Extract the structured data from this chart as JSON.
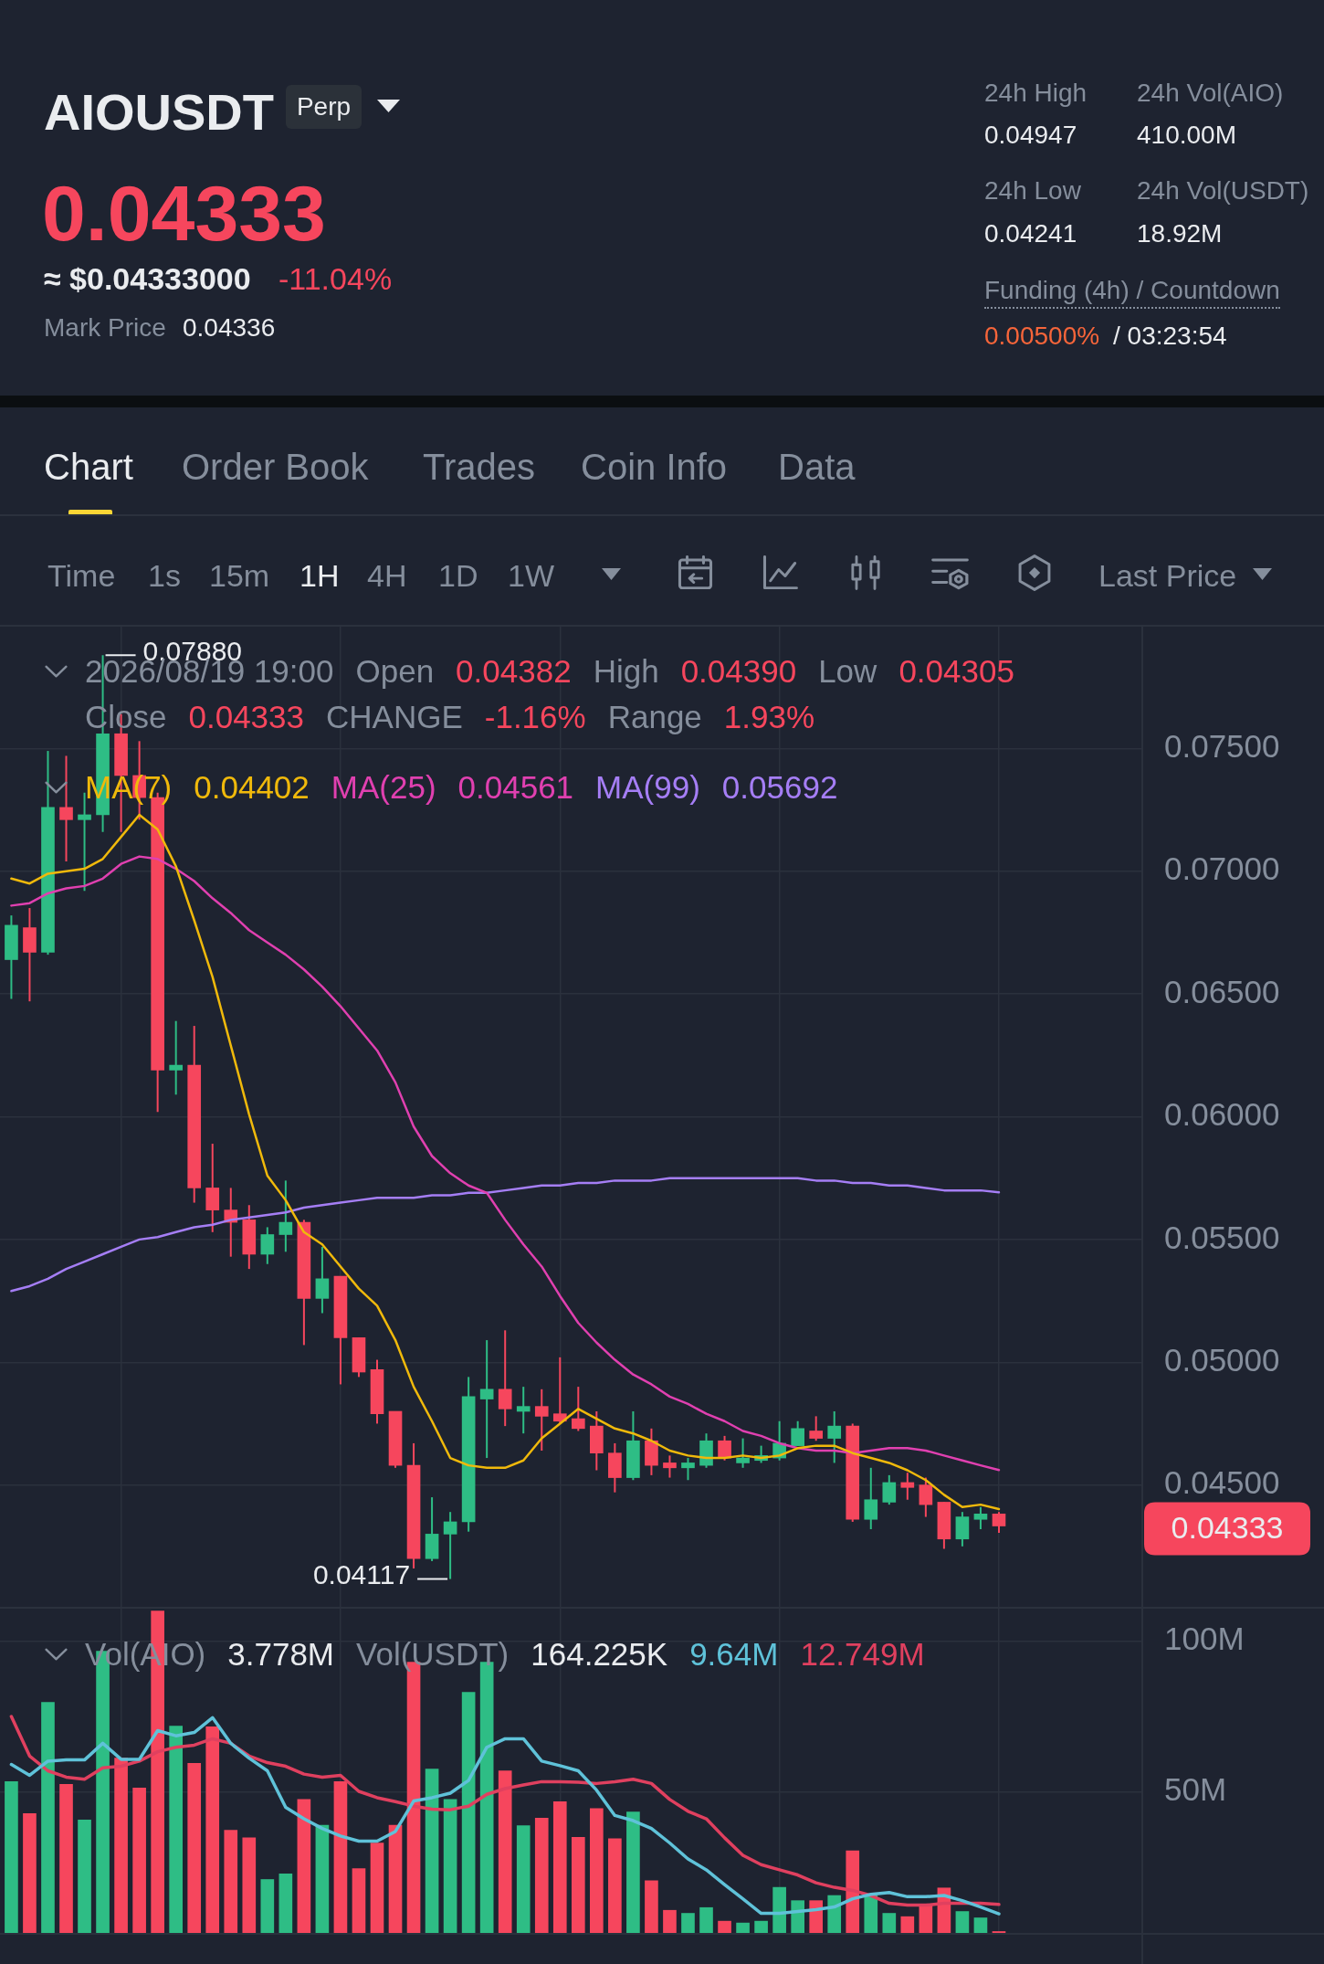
{
  "chart_data": [
    {
      "type": "other",
      "title": "AIOUSDT",
      "annotations": [
        "Perp",
        "0.04333",
        "≈ $0.04333000",
        "-11.04%",
        "Mark Price",
        "0.04336",
        "24h High",
        "0.04947",
        "24h Vol(AIO)",
        "410.00M",
        "24h Low",
        "0.04241",
        "24h Vol(USDT)",
        "18.92M",
        "Funding (4h) / Countdown",
        "0.00500%",
        "/ 03:23:54",
        "Chart",
        "Order Book",
        "Trades",
        "Coin Info",
        "Data",
        "Time",
        "1s",
        "15m",
        "1H",
        "4H",
        "1D",
        "1W",
        "Last Price"
      ]
    },
    {
      "type": "candlestick",
      "categories": [
        null,
        null,
        null,
        null,
        null,
        null,
        null,
        null,
        null,
        null,
        null,
        null,
        null,
        null,
        null,
        null,
        null,
        null,
        null,
        null,
        null,
        null,
        null,
        null,
        null,
        null,
        null,
        null,
        null,
        null,
        null,
        null,
        null,
        null,
        null,
        null,
        null,
        null,
        null,
        null,
        null,
        null,
        null,
        null,
        null,
        null,
        null,
        null,
        null,
        null,
        null,
        null,
        null,
        null,
        null
      ],
      "ohlc": [
        [
          0.0664,
          0.0682,
          0.0648,
          0.0678
        ],
        [
          0.0677,
          0.0685,
          0.0647,
          0.0667
        ],
        [
          0.0667,
          0.0749,
          0.0666,
          0.0726
        ],
        [
          0.0726,
          0.0747,
          0.0704,
          0.0721
        ],
        [
          0.0721,
          0.0732,
          0.0692,
          0.0723
        ],
        [
          0.0723,
          0.0788,
          0.0716,
          0.0756
        ],
        [
          0.0756,
          0.0764,
          0.0716,
          0.0739
        ],
        [
          0.0739,
          0.0753,
          0.0721,
          0.073
        ],
        [
          0.073,
          0.0732,
          0.0602,
          0.0619
        ],
        [
          0.0619,
          0.0639,
          0.0609,
          0.0621
        ],
        [
          0.0621,
          0.0637,
          0.0565,
          0.0571
        ],
        [
          0.0571,
          0.0589,
          0.0553,
          0.0562
        ],
        [
          0.0562,
          0.0571,
          0.0543,
          0.0557
        ],
        [
          0.0558,
          0.0564,
          0.0538,
          0.0544
        ],
        [
          0.0544,
          0.0555,
          0.054,
          0.0552
        ],
        [
          0.0552,
          0.0574,
          0.0545,
          0.0557
        ],
        [
          0.0557,
          0.0558,
          0.0507,
          0.0526
        ],
        [
          0.0526,
          0.0547,
          0.052,
          0.0534
        ],
        [
          0.0535,
          0.0535,
          0.0491,
          0.051
        ],
        [
          0.051,
          0.051,
          0.0494,
          0.0496
        ],
        [
          0.0497,
          0.0501,
          0.0475,
          0.0479
        ],
        [
          0.048,
          0.048,
          0.0457,
          0.0458
        ],
        [
          0.0458,
          0.0467,
          0.0416,
          0.042
        ],
        [
          0.042,
          0.0445,
          0.0419,
          0.043
        ],
        [
          0.043,
          0.0439,
          0.04117,
          0.0435
        ],
        [
          0.0435,
          0.0494,
          0.0431,
          0.0486
        ],
        [
          0.0485,
          0.0509,
          0.0461,
          0.0489
        ],
        [
          0.0489,
          0.0513,
          0.0474,
          0.0481
        ],
        [
          0.048,
          0.049,
          0.0471,
          0.0482
        ],
        [
          0.0482,
          0.0489,
          0.0464,
          0.0478
        ],
        [
          0.0479,
          0.0502,
          0.0475,
          0.0476
        ],
        [
          0.0477,
          0.049,
          0.0472,
          0.0473
        ],
        [
          0.0474,
          0.048,
          0.0456,
          0.0463
        ],
        [
          0.0463,
          0.0467,
          0.0447,
          0.0453
        ],
        [
          0.0453,
          0.048,
          0.0452,
          0.0468
        ],
        [
          0.0468,
          0.0473,
          0.0454,
          0.0458
        ],
        [
          0.0459,
          0.0462,
          0.0453,
          0.0457
        ],
        [
          0.0457,
          0.0461,
          0.0452,
          0.0459
        ],
        [
          0.0458,
          0.0471,
          0.0457,
          0.0468
        ],
        [
          0.0468,
          0.047,
          0.046,
          0.0461
        ],
        [
          0.0459,
          0.0469,
          0.0457,
          0.0461
        ],
        [
          0.046,
          0.0466,
          0.0459,
          0.0462
        ],
        [
          0.0461,
          0.0476,
          0.046,
          0.0467
        ],
        [
          0.0466,
          0.0476,
          0.0466,
          0.0473
        ],
        [
          0.0472,
          0.0478,
          0.0468,
          0.0469
        ],
        [
          0.0469,
          0.048,
          0.0459,
          0.0474
        ],
        [
          0.0474,
          0.0475,
          0.0435,
          0.0436
        ],
        [
          0.0436,
          0.0457,
          0.0432,
          0.0444
        ],
        [
          0.0443,
          0.0454,
          0.0442,
          0.0451
        ],
        [
          0.0451,
          0.0455,
          0.0444,
          0.0449
        ],
        [
          0.045,
          0.0453,
          0.0437,
          0.0442
        ],
        [
          0.0443,
          0.0443,
          0.0424,
          0.0428
        ],
        [
          0.0428,
          0.0439,
          0.0425,
          0.0437
        ],
        [
          0.0436,
          0.0441,
          0.0432,
          0.04382
        ],
        [
          0.04382,
          0.0439,
          0.04305,
          0.04333
        ]
      ],
      "colors": [
        "#2ebd85",
        "#f6465d",
        "#2ebd85",
        "#f6465d",
        "#2ebd85",
        "#2ebd85",
        "#f6465d",
        "#f6465d",
        "#f6465d",
        "#2ebd85",
        "#f6465d",
        "#f6465d",
        "#f6465d",
        "#f6465d",
        "#2ebd85",
        "#2ebd85",
        "#f6465d",
        "#2ebd85",
        "#f6465d",
        "#f6465d",
        "#f6465d",
        "#f6465d",
        "#f6465d",
        "#2ebd85",
        "#2ebd85",
        "#2ebd85",
        "#2ebd85",
        "#f6465d",
        "#2ebd85",
        "#f6465d",
        "#f6465d",
        "#f6465d",
        "#f6465d",
        "#f6465d",
        "#2ebd85",
        "#f6465d",
        "#f6465d",
        "#2ebd85",
        "#2ebd85",
        "#f6465d",
        "#2ebd85",
        "#2ebd85",
        "#2ebd85",
        "#2ebd85",
        "#f6465d",
        "#2ebd85",
        "#f6465d",
        "#2ebd85",
        "#2ebd85",
        "#f6465d",
        "#f6465d",
        "#f6465d",
        "#2ebd85",
        "#2ebd85",
        "#f6465d"
      ],
      "series": [
        {
          "type": "line",
          "name": "MA(7)",
          "color": "#f0b90b",
          "values": [
            0.0697,
            0.0695,
            0.0699,
            0.07,
            0.0701,
            0.0705,
            0.0714,
            0.0723,
            0.0717,
            0.0702,
            0.068,
            0.0657,
            0.0629,
            0.0601,
            0.0576,
            0.0566,
            0.0553,
            0.0548,
            0.0539,
            0.053,
            0.0523,
            0.0509,
            0.049,
            0.0476,
            0.0461,
            0.0458,
            0.0457,
            0.0457,
            0.046,
            0.0469,
            0.0475,
            0.0481,
            0.0477,
            0.0473,
            0.0471,
            0.0468,
            0.0464,
            0.0462,
            0.0461,
            0.0461,
            0.0462,
            0.0461,
            0.0462,
            0.0465,
            0.0466,
            0.0466,
            0.0463,
            0.0461,
            0.0459,
            0.0456,
            0.0452,
            0.0446,
            0.0441,
            0.0442,
            0.04402
          ]
        },
        {
          "type": "line",
          "name": "MA(25)",
          "color": "#e040b0",
          "values": [
            0.0686,
            0.0687,
            0.0691,
            0.0693,
            0.0694,
            0.0697,
            0.0703,
            0.0706,
            0.0705,
            0.0701,
            0.0696,
            0.0689,
            0.0683,
            0.0676,
            0.0671,
            0.0666,
            0.066,
            0.0653,
            0.0645,
            0.0636,
            0.0627,
            0.0614,
            0.0596,
            0.0584,
            0.0577,
            0.0572,
            0.0569,
            0.0558,
            0.0548,
            0.0539,
            0.0527,
            0.0516,
            0.0508,
            0.0501,
            0.0495,
            0.0491,
            0.0486,
            0.0483,
            0.0479,
            0.0476,
            0.0472,
            0.047,
            0.0467,
            0.0465,
            0.0464,
            0.0464,
            0.0463,
            0.0464,
            0.0465,
            0.0465,
            0.0464,
            0.0462,
            0.046,
            0.0458,
            0.04561
          ]
        },
        {
          "type": "line",
          "name": "MA(99)",
          "color": "#a57ef5",
          "values": [
            0.0529,
            0.0531,
            0.0534,
            0.0538,
            0.0541,
            0.0544,
            0.0547,
            0.055,
            0.0551,
            0.0553,
            0.0555,
            0.0556,
            0.0558,
            0.0559,
            0.056,
            0.0561,
            0.0563,
            0.0564,
            0.0565,
            0.0566,
            0.0567,
            0.0567,
            0.0567,
            0.0568,
            0.0568,
            0.0569,
            0.0569,
            0.057,
            0.0571,
            0.0572,
            0.0572,
            0.0573,
            0.0573,
            0.0574,
            0.0574,
            0.0574,
            0.0575,
            0.0575,
            0.0575,
            0.0575,
            0.0575,
            0.0575,
            0.0575,
            0.0575,
            0.0574,
            0.0574,
            0.0573,
            0.0573,
            0.0572,
            0.0572,
            0.0571,
            0.057,
            0.057,
            0.057,
            0.05692
          ]
        }
      ],
      "ylim": [
        0.04,
        0.08
      ],
      "yticks": [
        {
          "value": 0.045,
          "label": "0.04500"
        },
        {
          "value": 0.05,
          "label": "0.05000"
        },
        {
          "value": 0.055,
          "label": "0.05500"
        },
        {
          "value": 0.06,
          "label": "0.06000"
        },
        {
          "value": 0.065,
          "label": "0.06500"
        },
        {
          "value": 0.07,
          "label": "0.07000"
        },
        {
          "value": 0.075,
          "label": "0.07500"
        }
      ],
      "grid": true,
      "legend": "top left",
      "tick_labels": "y",
      "annotations": [
        "2026/08/19 19:00",
        "Open",
        "0.04382",
        "High",
        "0.04390",
        "Low",
        "0.04305",
        "Close",
        "0.04333",
        "CHANGE",
        "-1.16%",
        "Range",
        "1.93%",
        "0.07880",
        "0.04117",
        "0.04333",
        "0.04402",
        "0.04561",
        "0.05692"
      ]
    },
    {
      "type": "bar",
      "categories": [
        null,
        null,
        null,
        null,
        null,
        null,
        null,
        null,
        null,
        null,
        null,
        null,
        null,
        null,
        null,
        null,
        null,
        null,
        null,
        null,
        null,
        null,
        null,
        null,
        null,
        null,
        null,
        null,
        null,
        null,
        null,
        null,
        null,
        null,
        null,
        null,
        null,
        null,
        null,
        null,
        null,
        null,
        null,
        null,
        null,
        null,
        null,
        null,
        null,
        null,
        null,
        null,
        null,
        null,
        null
      ],
      "series": [
        {
          "name": "Vol(AIO)",
          "colors": [
            "#2ebd85",
            "#f6465d",
            "#2ebd85",
            "#f6465d",
            "#2ebd85",
            "#2ebd85",
            "#f6465d",
            "#f6465d",
            "#f6465d",
            "#2ebd85",
            "#f6465d",
            "#f6465d",
            "#f6465d",
            "#f6465d",
            "#2ebd85",
            "#2ebd85",
            "#f6465d",
            "#2ebd85",
            "#f6465d",
            "#f6465d",
            "#f6465d",
            "#f6465d",
            "#f6465d",
            "#2ebd85",
            "#2ebd85",
            "#2ebd85",
            "#2ebd85",
            "#f6465d",
            "#2ebd85",
            "#f6465d",
            "#f6465d",
            "#f6465d",
            "#f6465d",
            "#f6465d",
            "#2ebd85",
            "#f6465d",
            "#f6465d",
            "#2ebd85",
            "#2ebd85",
            "#f6465d",
            "#2ebd85",
            "#2ebd85",
            "#2ebd85",
            "#2ebd85",
            "#f6465d",
            "#2ebd85",
            "#f6465d",
            "#2ebd85",
            "#2ebd85",
            "#f6465d",
            "#f6465d",
            "#f6465d",
            "#2ebd85",
            "#2ebd85",
            "#f6465d"
          ],
          "values": [
            53.4,
            42.8,
            79.7,
            52.5,
            40.7,
            96.6,
            61.2,
            51.3,
            109.9,
            71.8,
            59.5,
            71.6,
            37.3,
            34.8,
            21.0,
            22.9,
            47.5,
            39.0,
            53.4,
            24.6,
            33.1,
            39.0,
            93.0,
            57.6,
            47.5,
            83.0,
            93.0,
            57.0,
            38.8,
            41.3,
            46.8,
            35.0,
            44.5,
            34.5,
            43.4,
            20.6,
            10.8,
            9.8,
            11.7,
            7.2,
            6.6,
            7.2,
            18.4,
            14.0,
            14.0,
            15.7,
            30.5,
            15.7,
            9.8,
            8.7,
            12.5,
            18.2,
            10.4,
            8.3,
            3.778
          ]
        },
        {
          "type": "line",
          "color": "#5fc2d9",
          "values": [
            59.1,
            55.5,
            60.2,
            60.6,
            60.6,
            66.1,
            60.8,
            60.8,
            70.3,
            68.6,
            69.7,
            74.6,
            66.1,
            61.2,
            57.0,
            44.9,
            41.1,
            37.9,
            35.4,
            33.7,
            33.7,
            36.9,
            47.0,
            48.1,
            49.6,
            53.8,
            64.8,
            67.6,
            67.6,
            60.2,
            58.7,
            57.0,
            50.6,
            42.2,
            40.5,
            37.9,
            33.1,
            27.8,
            24.2,
            19.3,
            14.6,
            9.8,
            9.8,
            10.4,
            11.0,
            11.9,
            14.6,
            16.1,
            16.7,
            15.3,
            15.3,
            15.7,
            14.0,
            11.9,
            9.64
          ]
        },
        {
          "type": "line",
          "color": "#e0405f",
          "values": [
            75.0,
            61.9,
            57.0,
            54.9,
            54.2,
            58.0,
            58.5,
            60.2,
            63.3,
            64.8,
            65.5,
            67.6,
            66.1,
            61.9,
            59.7,
            58.5,
            55.9,
            54.9,
            55.5,
            50.2,
            48.1,
            46.8,
            45.3,
            44.3,
            44.1,
            45.3,
            49.2,
            51.1,
            52.3,
            53.4,
            53.4,
            53.2,
            52.8,
            53.4,
            54.2,
            52.8,
            47.5,
            43.6,
            41.1,
            34.8,
            29.0,
            25.9,
            24.2,
            22.5,
            19.9,
            18.4,
            17.4,
            15.7,
            13.1,
            12.5,
            12.5,
            13.1,
            13.1,
            13.1,
            12.749
          ]
        }
      ],
      "ylim": [
        3,
        111
      ],
      "yticks": [
        {
          "value": 50,
          "label": "50M"
        },
        {
          "value": 100,
          "label": "100M"
        }
      ],
      "grid": true,
      "legend": "top left",
      "tick_labels": "y",
      "annotations": [
        "3.778M",
        "Vol(USDT)",
        "164.225K",
        "9.64M",
        "12.749M"
      ]
    }
  ]
}
